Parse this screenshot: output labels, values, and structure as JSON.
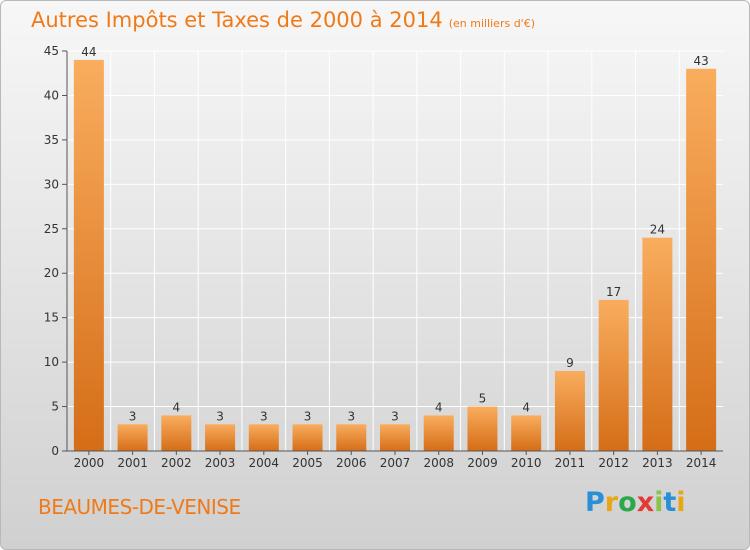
{
  "header": {
    "title": "Autres Impôts et Taxes de 2000 à 2014",
    "subtitle": "(en milliers d'€)"
  },
  "footer": {
    "commune": "BEAUMES-DE-VENISE",
    "brand_letters": [
      "P",
      "r",
      "o",
      "x",
      "i",
      "t",
      "i"
    ],
    "brand_colors": [
      "#2a8fd6",
      "#e8a617",
      "#2aa84a",
      "#e53935",
      "#8bc34a",
      "#2a8fd6",
      "#e8a617"
    ]
  },
  "colors": {
    "title": "#f07a18",
    "bar_light": "#f9ad5e",
    "bar_dark": "#d56d17",
    "axis": "#555555",
    "grid": "#ffffff"
  },
  "chart_data": {
    "type": "bar",
    "categories": [
      "2000",
      "2001",
      "2002",
      "2003",
      "2004",
      "2005",
      "2006",
      "2007",
      "2008",
      "2009",
      "2010",
      "2011",
      "2012",
      "2013",
      "2014"
    ],
    "values": [
      44,
      3,
      4,
      3,
      3,
      3,
      3,
      3,
      4,
      5,
      4,
      9,
      17,
      24,
      43
    ],
    "ylim": [
      0,
      45
    ],
    "yticks": [
      0,
      5,
      10,
      15,
      20,
      25,
      30,
      35,
      40,
      45
    ],
    "grid": true,
    "data_labels": true
  }
}
